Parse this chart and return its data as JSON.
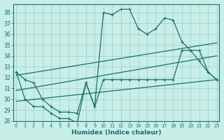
{
  "bg_color": "#c8eee8",
  "line_color": "#1a7070",
  "grid_color": "#99cccc",
  "xlim_min": -0.3,
  "xlim_max": 23.3,
  "ylim_min": 28,
  "ylim_max": 38.8,
  "yticks": [
    28,
    29,
    30,
    31,
    32,
    33,
    34,
    35,
    36,
    37,
    38
  ],
  "xticks": [
    0,
    1,
    2,
    3,
    4,
    5,
    6,
    7,
    8,
    9,
    10,
    11,
    12,
    13,
    14,
    15,
    16,
    17,
    18,
    19,
    20,
    21,
    22,
    23
  ],
  "xlabel": "Humidex (Indice chaleur)",
  "line1_x": [
    0,
    1,
    2,
    3,
    4,
    5,
    6,
    7,
    8,
    9,
    10,
    11,
    12,
    13,
    14,
    15,
    16,
    17,
    18,
    19,
    20,
    21,
    22,
    23
  ],
  "line1_y": [
    32.5,
    31.8,
    31.5,
    30.0,
    29.3,
    28.8,
    28.8,
    28.7,
    31.5,
    29.3,
    38.0,
    37.8,
    38.3,
    38.3,
    36.5,
    36.0,
    36.5,
    37.5,
    37.3,
    35.3,
    34.5,
    33.5,
    32.5,
    31.8
  ],
  "line2_x": [
    0,
    1,
    2,
    3,
    4,
    5,
    6,
    7,
    8,
    9,
    10,
    11,
    12,
    13,
    14,
    15,
    16,
    17,
    18,
    19,
    20,
    21,
    22,
    23
  ],
  "line2_y": [
    32.5,
    30.0,
    29.3,
    29.3,
    28.7,
    28.2,
    28.2,
    27.8,
    31.5,
    29.3,
    31.8,
    31.8,
    31.8,
    31.8,
    31.8,
    31.8,
    31.8,
    31.8,
    31.8,
    34.5,
    34.5,
    34.5,
    32.5,
    31.8
  ],
  "line3_x": [
    0,
    23
  ],
  "line3_y": [
    32.2,
    35.2
  ],
  "line4_x": [
    0,
    23
  ],
  "line4_y": [
    30.8,
    34.0
  ],
  "line5_x": [
    0,
    23
  ],
  "line5_y": [
    29.8,
    31.8
  ]
}
